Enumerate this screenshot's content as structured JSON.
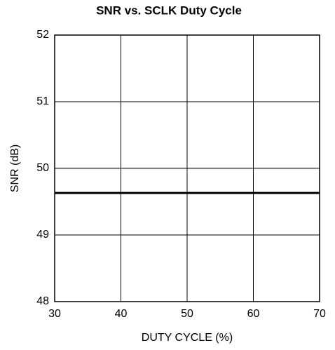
{
  "chart_data": {
    "type": "line",
    "title": "SNR vs. SCLK Duty Cycle",
    "x_label": "DUTY CYCLE (%)",
    "y_label": "SNR (dB)",
    "x": [
      30,
      40,
      50,
      60,
      70
    ],
    "series": [
      {
        "name": null,
        "color": "#000000",
        "values": [
          49.63,
          49.63,
          49.63,
          49.63,
          49.63
        ]
      }
    ],
    "xlim": [
      30,
      70
    ],
    "xticks": [
      30,
      40,
      50,
      60,
      70
    ],
    "ylim": [
      48,
      52
    ],
    "yticks": [
      48,
      49,
      50,
      51,
      52
    ],
    "grid": true
  }
}
